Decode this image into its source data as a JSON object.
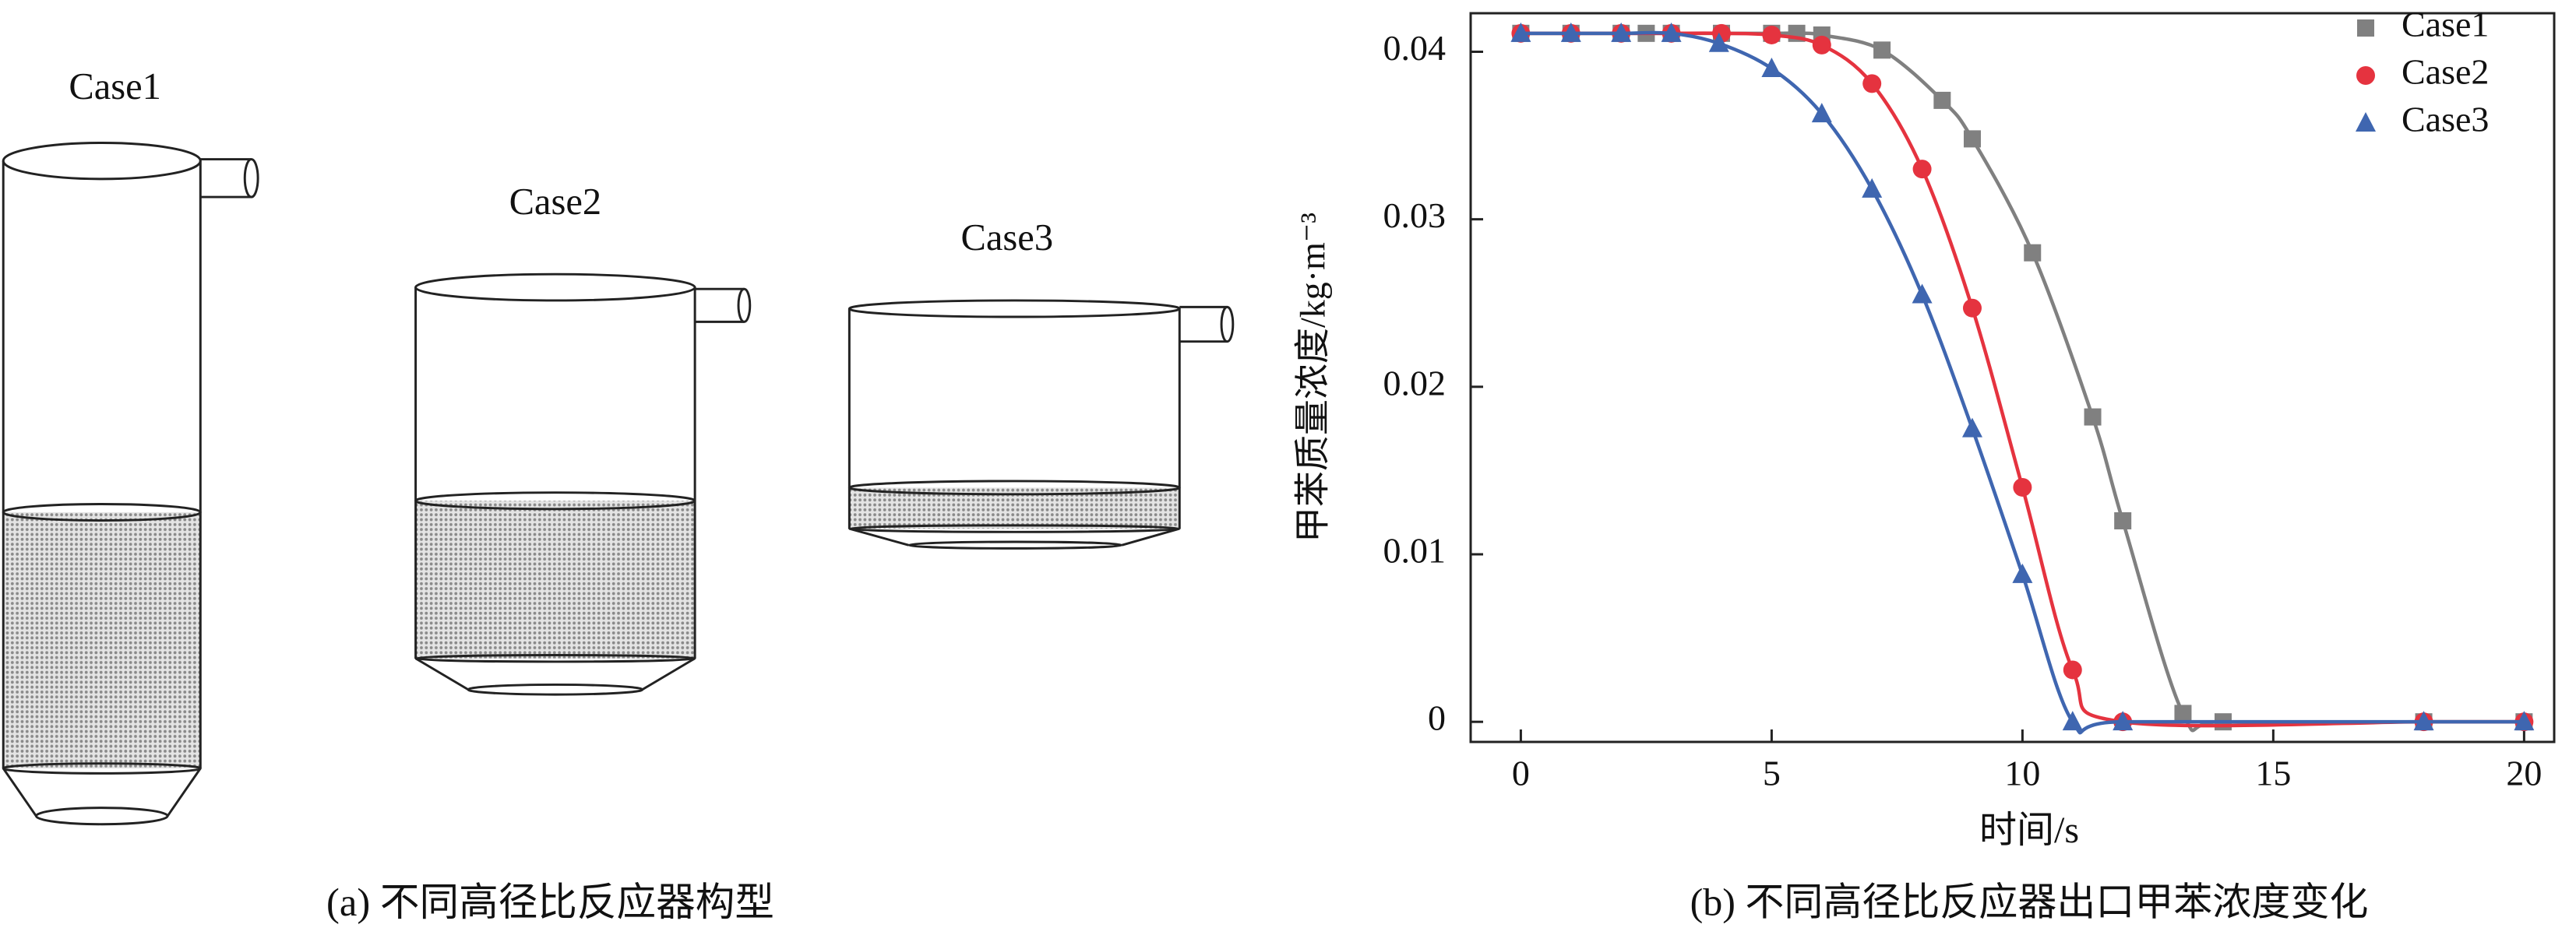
{
  "diagram": {
    "labels": [
      "Case1",
      "Case2",
      "Case3"
    ],
    "caption": "(a) 不同高径比反应器构型"
  },
  "chart_data": {
    "type": "line",
    "caption": "(b) 不同高径比反应器出口甲苯浓度变化",
    "x_label": "时间/s",
    "y_label": "甲苯质量浓度/kg·m⁻³",
    "xlim": [
      -1,
      20.6
    ],
    "ylim": [
      -0.0012,
      0.0423
    ],
    "xticks": [
      0,
      5,
      10,
      15,
      20
    ],
    "yticks": [
      0,
      0.01,
      0.02,
      0.03,
      0.04
    ],
    "legend": "upper right",
    "series": [
      {
        "name": "Case1",
        "color": "#808080",
        "marker": "square",
        "x": [
          0,
          1,
          2,
          2.5,
          3,
          4,
          5,
          5.5,
          6,
          7.2,
          8.4,
          9,
          10.2,
          11.4,
          12,
          13.2,
          14,
          18,
          20
        ],
        "values": [
          0.0411,
          0.0411,
          0.0411,
          0.0411,
          0.0411,
          0.0411,
          0.0411,
          0.0411,
          0.041,
          0.0401,
          0.0371,
          0.0348,
          0.028,
          0.0182,
          0.012,
          0.0005,
          0,
          0,
          0
        ]
      },
      {
        "name": "Case2",
        "color": "#e5333f",
        "marker": "circle",
        "x": [
          0,
          1,
          2,
          3,
          4,
          5,
          6,
          7,
          8,
          9,
          10,
          11,
          12,
          18,
          20
        ],
        "values": [
          0.0411,
          0.0411,
          0.0411,
          0.0411,
          0.0411,
          0.041,
          0.0404,
          0.0381,
          0.033,
          0.0247,
          0.014,
          0.0031,
          0,
          0,
          0
        ]
      },
      {
        "name": "Case3",
        "color": "#3f66b0",
        "marker": "triangle",
        "x": [
          0,
          1,
          2,
          3,
          3.95,
          5,
          6,
          7,
          8,
          9,
          10,
          11,
          12,
          18,
          20
        ],
        "values": [
          0.0411,
          0.0411,
          0.0411,
          0.0411,
          0.0405,
          0.039,
          0.0363,
          0.0318,
          0.0255,
          0.0175,
          0.0088,
          0,
          0,
          0,
          0
        ]
      }
    ]
  }
}
